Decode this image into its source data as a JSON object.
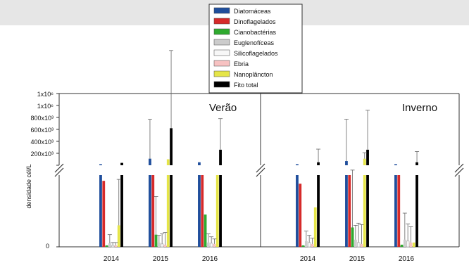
{
  "colors": {
    "background": "#ffffff",
    "top_band": "#e6e6e6",
    "axis": "#333333",
    "error_bar": "#666666"
  },
  "chart_data": {
    "type": "bar",
    "ylabel": "densidade cél/L",
    "categories": [
      "2014",
      "2015",
      "2016"
    ],
    "panels": [
      {
        "name": "Verão"
      },
      {
        "name": "Inverno"
      }
    ],
    "y_ticks_upper": [
      "1x10⁶",
      "1x10⁶",
      "800x10³",
      "600x10³",
      "400x10³",
      "200x10³"
    ],
    "y_tick_lower": "0",
    "y_break": true,
    "ylim_upper": [
      0,
      1100000
    ],
    "legend_position": "top-center",
    "series": [
      {
        "name": "Diatomáceas",
        "color": "#1f4e9c"
      },
      {
        "name": "Dinoflagelados",
        "color": "#d62a2a"
      },
      {
        "name": "Cianobactérias",
        "color": "#2faa2f"
      },
      {
        "name": "Euglenofíceas",
        "color": "#cccccc"
      },
      {
        "name": "Silicoflagelados",
        "color": "#f7f7f7"
      },
      {
        "name": "Ebria",
        "color": "#f7c2c2"
      },
      {
        "name": "Nanoplâncton",
        "color": "#e5e548"
      },
      {
        "name": "Fito total",
        "color": "#000000"
      }
    ],
    "lower_values": {
      "Verão": {
        "2014": [
          1,
          0.92,
          0.02,
          0.05,
          0.02,
          0.02,
          0.3,
          1
        ],
        "2015": [
          1,
          1,
          0.17,
          0.06,
          0.04,
          0.03,
          1,
          1
        ],
        "2016": [
          1,
          1,
          0.45,
          0.06,
          0.05,
          0.04,
          1,
          1
        ]
      },
      "Inverno": {
        "2014": [
          1,
          0.88,
          0.02,
          0.08,
          0.06,
          0.04,
          0.55,
          1
        ],
        "2015": [
          1,
          1,
          0.27,
          0.1,
          0.06,
          0.04,
          1,
          1
        ],
        "2016": [
          1,
          1,
          0.03,
          0.1,
          0.08,
          0.06,
          0.06,
          1
        ]
      }
    },
    "lower_errors": {
      "Verão": {
        "2014": [
          0,
          0,
          0,
          0.12,
          0.04,
          0.04,
          0.64,
          0
        ],
        "2015": [
          0,
          0,
          0.53,
          0.1,
          0.14,
          0.17,
          0,
          0
        ],
        "2016": [
          0,
          0,
          0,
          0.12,
          0.09,
          0.07,
          0,
          0
        ]
      },
      "Inverno": {
        "2014": [
          0,
          0,
          0,
          0.14,
          0.1,
          0.08,
          0,
          0
        ],
        "2015": [
          0,
          0,
          0.8,
          0.2,
          0.27,
          0.27,
          0,
          0
        ],
        "2016": [
          0,
          0,
          0,
          0.37,
          0.24,
          0.22,
          0,
          0
        ]
      }
    },
    "upper_values": {
      "Verão": {
        "2014": [
          5000,
          0,
          0,
          0,
          0,
          0,
          0,
          20000
        ],
        "2015": [
          55000,
          0,
          0,
          0,
          0,
          0,
          50000,
          310000
        ],
        "2016": [
          25000,
          0,
          0,
          0,
          0,
          0,
          0,
          130000
        ]
      },
      "Inverno": {
        "2014": [
          5000,
          0,
          0,
          0,
          0,
          0,
          0,
          25000
        ],
        "2015": [
          35000,
          0,
          0,
          0,
          0,
          0,
          55000,
          130000
        ],
        "2016": [
          5000,
          0,
          0,
          0,
          0,
          0,
          0,
          25000
        ]
      }
    },
    "upper_errors": {
      "Verão": {
        "2014": [
          0,
          0,
          0,
          0,
          0,
          0,
          0,
          0
        ],
        "2015": [
          330000,
          0,
          0,
          0,
          0,
          0,
          0,
          650000
        ],
        "2016": [
          0,
          0,
          0,
          0,
          0,
          0,
          0,
          260000
        ]
      },
      "Inverno": {
        "2014": [
          0,
          0,
          0,
          0,
          0,
          0,
          0,
          110000
        ],
        "2015": [
          350000,
          0,
          0,
          0,
          0,
          0,
          50000,
          330000
        ],
        "2016": [
          0,
          0,
          0,
          0,
          0,
          0,
          0,
          90000
        ]
      }
    }
  }
}
